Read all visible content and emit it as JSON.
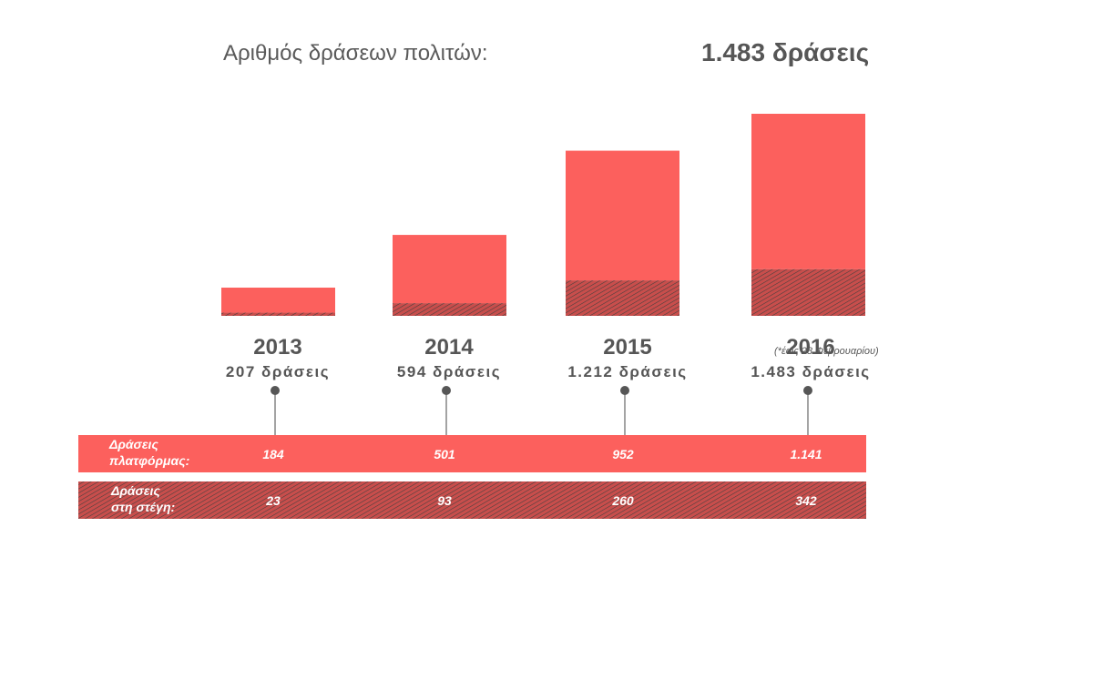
{
  "header": {
    "label": "Αριθμός δράσεων πολιτών:",
    "total": "1.483 δράσεις"
  },
  "colors": {
    "platform": "#fc605d",
    "roof": "#c84e4c",
    "text": "#565656"
  },
  "chart_data": {
    "type": "bar",
    "stacked": true,
    "categories": [
      "2013",
      "2014",
      "2015",
      "2016"
    ],
    "category_notes": [
      "",
      "",
      "",
      "(*έως 28 Φεβρουαρίου)"
    ],
    "total_labels": [
      "207 δράσεις",
      "594 δράσεις",
      "1.212 δράσεις",
      "1.483 δράσεις"
    ],
    "totals": [
      207,
      594,
      1212,
      1483
    ],
    "series": [
      {
        "name": "Δράσεις στη στέγη:",
        "label_lines": [
          "Δράσεις",
          "στη στέγη:"
        ],
        "values": [
          23,
          93,
          260,
          342
        ],
        "value_labels": [
          "23",
          "93",
          "260",
          "342"
        ],
        "pattern": "hatched"
      },
      {
        "name": "Δράσεις πλατφόρμας:",
        "label_lines": [
          "Δράσεις",
          "πλατφόρμας:"
        ],
        "values": [
          184,
          501,
          952,
          1141
        ],
        "value_labels": [
          "184",
          "501",
          "952",
          "1.141"
        ],
        "pattern": "solid"
      }
    ],
    "ylim": [
      0,
      1483
    ],
    "grid": false,
    "legend": "table-below"
  }
}
